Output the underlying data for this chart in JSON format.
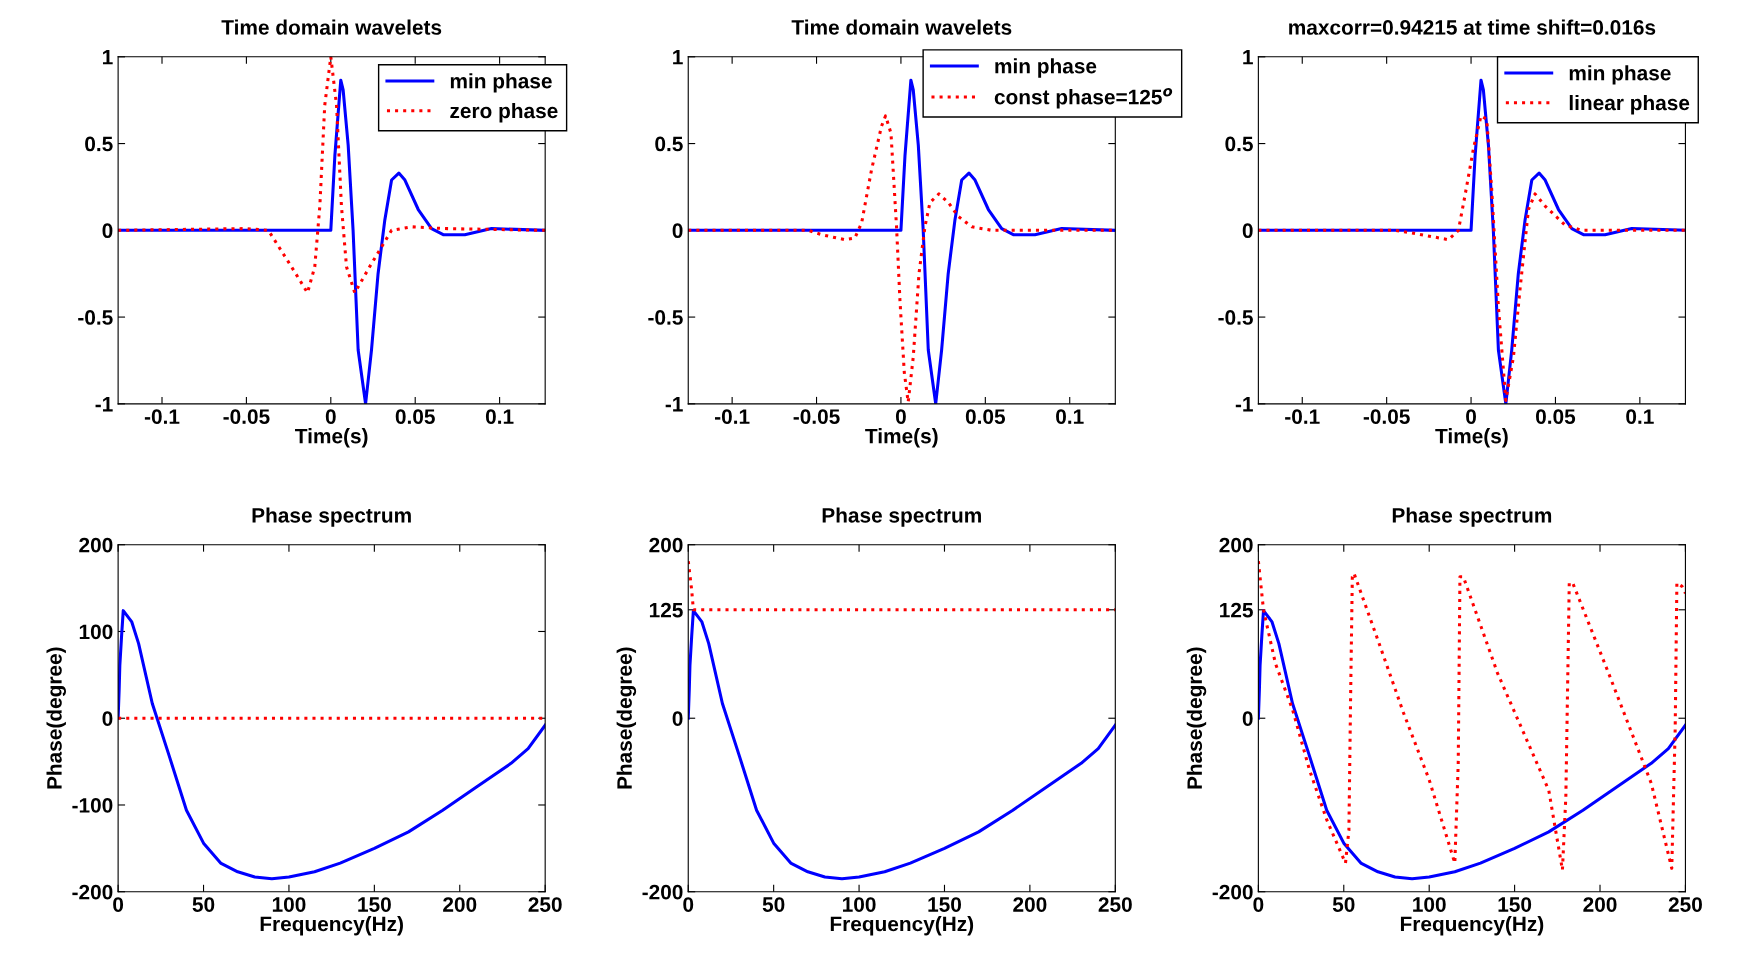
{
  "chart_data": [
    {
      "type": "line",
      "title": "Time domain wavelets",
      "xlabel": "Time(s)",
      "xlim": [
        -0.126,
        0.127
      ],
      "xticks": [
        -0.1,
        -0.05,
        0,
        0.05,
        0.1
      ],
      "ylim": [
        -1,
        1
      ],
      "yticks": [
        -1,
        -0.5,
        0,
        0.5,
        1
      ],
      "legend": "top right",
      "grid": false,
      "series": [
        {
          "name": "min phase",
          "color": "#0000ff",
          "line_style": "solid",
          "x": [
            -0.126,
            0,
            0.0024,
            0.0059,
            0.0073,
            0.0103,
            0.0132,
            0.0162,
            0.0206,
            0.0241,
            0.028,
            0.032,
            0.036,
            0.0403,
            0.0439,
            0.0518,
            0.0597,
            0.0666,
            0.0794,
            0.0952,
            0.127
          ],
          "values": [
            0,
            0,
            0.43,
            0.865,
            0.81,
            0.49,
            0,
            -0.69,
            -1,
            -0.69,
            -0.25,
            0.06,
            0.29,
            0.33,
            0.29,
            0.12,
            0.01,
            -0.025,
            -0.025,
            0.01,
            0
          ]
        },
        {
          "name": "zero phase",
          "color": "#ff0000",
          "line_style": "dotted",
          "x": [
            -0.126,
            -0.051,
            -0.037,
            -0.0233,
            -0.0138,
            -0.0095,
            -0.0065,
            -0.0036,
            0,
            0.0034,
            0.0063,
            0.0093,
            0.0142,
            0.023,
            0.036,
            0.048,
            0.0676,
            0.127
          ],
          "values": [
            0,
            0.01,
            0,
            -0.21,
            -0.36,
            -0.21,
            0.14,
            0.72,
            1,
            0.72,
            0.14,
            -0.21,
            -0.36,
            -0.21,
            0,
            0.02,
            0.01,
            0
          ]
        }
      ]
    },
    {
      "type": "line",
      "title": "Time domain wavelets",
      "xlabel": "Time(s)",
      "xlim": [
        -0.126,
        0.127
      ],
      "xticks": [
        -0.1,
        -0.05,
        0,
        0.05,
        0.1
      ],
      "ylim": [
        -1,
        1
      ],
      "yticks": [
        -1,
        -0.5,
        0,
        0.5,
        1
      ],
      "legend": "top right",
      "grid": false,
      "series": [
        {
          "name": "min phase",
          "color": "#0000ff",
          "line_style": "solid",
          "x": [
            -0.126,
            0,
            0.0024,
            0.0059,
            0.0073,
            0.0103,
            0.0132,
            0.0162,
            0.0206,
            0.0241,
            0.028,
            0.032,
            0.036,
            0.0403,
            0.0439,
            0.0518,
            0.0597,
            0.0666,
            0.0794,
            0.0952,
            0.127
          ],
          "values": [
            0,
            0,
            0.43,
            0.865,
            0.81,
            0.49,
            0,
            -0.69,
            -1,
            -0.69,
            -0.25,
            0.06,
            0.29,
            0.33,
            0.29,
            0.12,
            0.01,
            -0.025,
            -0.025,
            0.01,
            0
          ]
        },
        {
          "name": "const phase=125$^{o}$",
          "color": "#ff0000",
          "line_style": "dotted",
          "x": [
            -0.126,
            -0.055,
            -0.047,
            -0.0332,
            -0.0273,
            -0.0233,
            -0.0174,
            -0.0115,
            -0.0091,
            -0.0059,
            -0.0026,
            -0.0006,
            0.002,
            0.0043,
            0.0073,
            0.0107,
            0.0142,
            0.0172,
            0.0225,
            0.0281,
            0.034,
            0.042,
            0.0537,
            0.127
          ],
          "values": [
            0,
            0,
            -0.025,
            -0.054,
            -0.044,
            0.042,
            0.35,
            0.6,
            0.66,
            0.56,
            0.02,
            -0.4,
            -0.82,
            -0.99,
            -0.73,
            -0.25,
            0.02,
            0.16,
            0.21,
            0.16,
            0.08,
            0.02,
            0,
            0
          ]
        }
      ]
    },
    {
      "type": "line",
      "title": "maxcorr=0.94215 at time shift=0.016s",
      "xlabel": "Time(s)",
      "xlim": [
        -0.126,
        0.127
      ],
      "xticks": [
        -0.1,
        -0.05,
        0,
        0.05,
        0.1
      ],
      "ylim": [
        -1,
        1
      ],
      "yticks": [
        -1,
        -0.5,
        0,
        0.5,
        1
      ],
      "legend": "top right",
      "grid": false,
      "series": [
        {
          "name": "min phase",
          "color": "#0000ff",
          "line_style": "solid",
          "x": [
            -0.126,
            0,
            0.0024,
            0.0059,
            0.0073,
            0.0103,
            0.0132,
            0.0162,
            0.0206,
            0.0241,
            0.028,
            0.032,
            0.036,
            0.0403,
            0.0439,
            0.0518,
            0.0597,
            0.0666,
            0.0794,
            0.0952,
            0.127
          ],
          "values": [
            0,
            0,
            0.43,
            0.865,
            0.81,
            0.49,
            0,
            -0.69,
            -1,
            -0.69,
            -0.25,
            0.06,
            0.29,
            0.33,
            0.29,
            0.12,
            0.01,
            -0.025,
            -0.025,
            0.01,
            0
          ]
        },
        {
          "name": "linear phase",
          "color": "#ff0000",
          "line_style": "dotted",
          "x": [
            -0.126,
            -0.045,
            -0.035,
            -0.0134,
            -0.0075,
            -0.0036,
            0.0014,
            0.0059,
            0.0093,
            0.0122,
            0.0162,
            0.0206,
            0.0251,
            0.029,
            0.034,
            0.0379,
            0.0439,
            0.0557,
            0.0656,
            0.127
          ],
          "values": [
            0,
            0,
            -0.015,
            -0.054,
            0,
            0.2,
            0.47,
            0.66,
            0.64,
            0.24,
            -0.44,
            -0.98,
            -0.73,
            -0.34,
            0.12,
            0.21,
            0.14,
            0.03,
            0,
            0
          ]
        }
      ]
    },
    {
      "type": "line",
      "title": "Phase spectrum",
      "xlabel": "Frequency(Hz)",
      "ylabel": "Phase(degree)",
      "xlim": [
        0,
        250
      ],
      "xticks": [
        0,
        50,
        100,
        150,
        200,
        250
      ],
      "ylim": [
        -200,
        200
      ],
      "yticks": [
        -200,
        -100,
        0,
        100,
        200
      ],
      "grid": false,
      "series": [
        {
          "color": "#0000ff",
          "line_style": "solid",
          "x": [
            0,
            0.6,
            1,
            2,
            3,
            8,
            12,
            20,
            30,
            40,
            50,
            60,
            70,
            80,
            90,
            100,
            115,
            130,
            150,
            170,
            190,
            210,
            230,
            240,
            250
          ],
          "values": [
            0,
            33,
            61,
            94,
            124,
            111,
            86,
            17,
            -44,
            -106,
            -144,
            -167,
            -177,
            -183,
            -185,
            -183,
            -177,
            -167,
            -150,
            -131,
            -106,
            -79,
            -52,
            -35,
            -8
          ]
        },
        {
          "color": "#ff0000",
          "line_style": "dotted",
          "x": [
            0,
            250
          ],
          "values": [
            0,
            0
          ]
        }
      ]
    },
    {
      "type": "line",
      "title": "Phase spectrum",
      "xlabel": "Frequency(Hz)",
      "ylabel": "Phase(degree)",
      "xlim": [
        0,
        250
      ],
      "xticks": [
        0,
        50,
        100,
        150,
        200,
        250
      ],
      "ylim": [
        -200,
        200
      ],
      "yticks": [
        -200,
        0,
        125,
        200
      ],
      "grid": false,
      "series": [
        {
          "color": "#0000ff",
          "line_style": "solid",
          "x": [
            0,
            0.6,
            1,
            2,
            3,
            8,
            12,
            20,
            30,
            40,
            50,
            60,
            70,
            80,
            90,
            100,
            115,
            130,
            150,
            170,
            190,
            210,
            230,
            240,
            250
          ],
          "values": [
            0,
            33,
            61,
            94,
            124,
            111,
            86,
            17,
            -44,
            -106,
            -144,
            -167,
            -177,
            -183,
            -185,
            -183,
            -177,
            -167,
            -150,
            -131,
            -106,
            -79,
            -52,
            -35,
            -8
          ]
        },
        {
          "color": "#ff0000",
          "line_style": "dotted",
          "x": [
            0,
            2,
            3,
            250
          ],
          "values": [
            181,
            148,
            125,
            125
          ]
        }
      ]
    },
    {
      "type": "line",
      "title": "Phase spectrum",
      "xlabel": "Frequency(Hz)",
      "ylabel": "Phase(degree)",
      "xlim": [
        0,
        250
      ],
      "xticks": [
        0,
        50,
        100,
        150,
        200,
        250
      ],
      "ylim": [
        -200,
        200
      ],
      "yticks": [
        -200,
        0,
        125,
        200
      ],
      "grid": false,
      "series": [
        {
          "color": "#0000ff",
          "line_style": "solid",
          "x": [
            0,
            0.6,
            1,
            2,
            3,
            8,
            12,
            20,
            30,
            40,
            50,
            60,
            70,
            80,
            90,
            100,
            115,
            130,
            150,
            170,
            190,
            210,
            230,
            240,
            250
          ],
          "values": [
            0,
            33,
            61,
            94,
            124,
            111,
            86,
            17,
            -44,
            -106,
            -144,
            -167,
            -177,
            -183,
            -185,
            -183,
            -177,
            -167,
            -150,
            -131,
            -106,
            -79,
            -52,
            -35,
            -8
          ]
        },
        {
          "color": "#ff0000",
          "line_style": "dotted",
          "x": [
            0,
            3,
            10,
            20,
            30,
            40,
            51,
            53,
            54,
            55,
            56,
            70,
            85,
            100,
            115,
            117,
            118,
            120,
            140,
            170,
            178,
            180,
            182,
            184,
            205,
            230,
            242,
            244,
            245,
            248,
            250
          ],
          "values": [
            181,
            125,
            63,
            10,
            -60,
            -117,
            -167,
            -129,
            25,
            163,
            167,
            90,
            6,
            -71,
            -167,
            -52,
            163,
            163,
            52,
            -83,
            -175,
            -90,
            156,
            156,
            52,
            -75,
            -173,
            -13,
            156,
            152,
            144
          ]
        }
      ]
    }
  ]
}
